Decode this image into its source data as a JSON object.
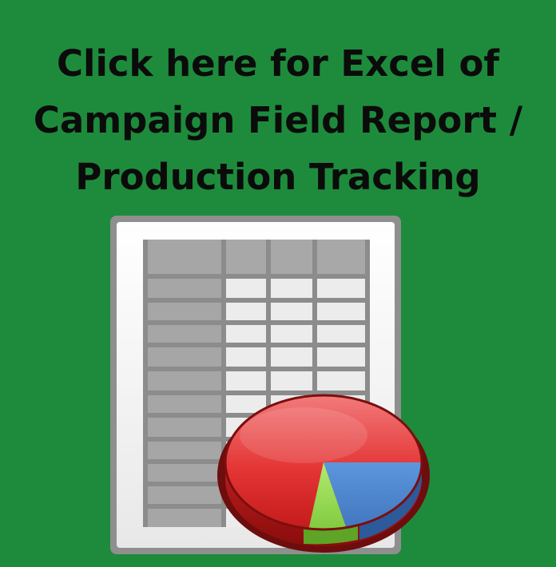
{
  "headline": {
    "line1": "Click here for Excel of",
    "line2": "Campaign Field Report /",
    "line3": "Production Tracking"
  },
  "colors": {
    "background": "#1e8b3c",
    "headline_text": "#0b0b0b",
    "pie_red": "#e83a3a",
    "pie_blue": "#3f7cc9",
    "pie_green": "#8fd44a"
  },
  "icon": "spreadsheet-with-pie-chart-icon"
}
